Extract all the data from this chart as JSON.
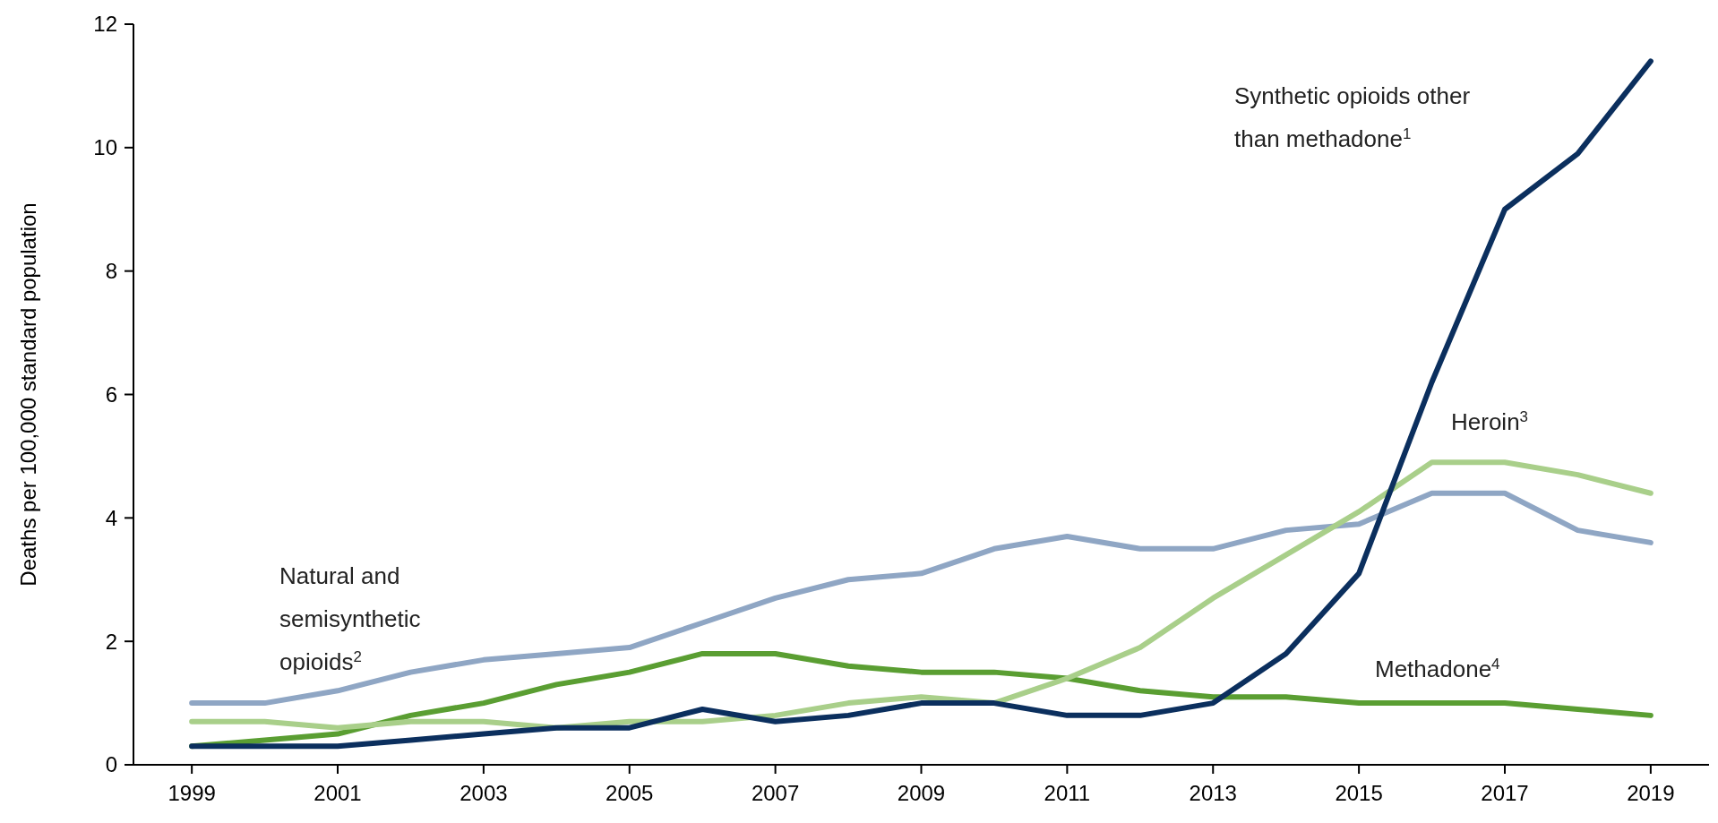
{
  "chart_data": {
    "type": "line",
    "ylabel": "Deaths per 100,000 standard population",
    "x": [
      1999,
      2000,
      2001,
      2002,
      2003,
      2004,
      2005,
      2006,
      2007,
      2008,
      2009,
      2010,
      2011,
      2012,
      2013,
      2014,
      2015,
      2016,
      2017,
      2018,
      2019
    ],
    "xlim": [
      1998.2,
      2019.8
    ],
    "xticks": [
      1999,
      2001,
      2003,
      2005,
      2007,
      2009,
      2011,
      2013,
      2015,
      2017,
      2019
    ],
    "ylim": [
      0,
      12
    ],
    "yticks": [
      0,
      2,
      4,
      6,
      8,
      10,
      12
    ],
    "grid": false,
    "legend": false,
    "marker": "none",
    "line_style": "solid",
    "series": [
      {
        "name": "Natural and semisynthetic opioids$^{2}$",
        "color": "#8fa6c4",
        "values": [
          1.0,
          1.0,
          1.2,
          1.5,
          1.7,
          1.8,
          1.9,
          2.3,
          2.7,
          3.0,
          3.1,
          3.5,
          3.7,
          3.5,
          3.5,
          3.8,
          3.9,
          4.4,
          4.4,
          3.8,
          3.6
        ]
      },
      {
        "name": "Methadone$^{4}$",
        "color": "#5a9e32",
        "values": [
          0.3,
          0.4,
          0.5,
          0.8,
          1.0,
          1.3,
          1.5,
          1.8,
          1.8,
          1.6,
          1.5,
          1.5,
          1.4,
          1.2,
          1.1,
          1.1,
          1.0,
          1.0,
          1.0,
          0.9,
          0.8
        ]
      },
      {
        "name": "Heroin$^{3}$",
        "color": "#a9cf8a",
        "values": [
          0.7,
          0.7,
          0.6,
          0.7,
          0.7,
          0.6,
          0.7,
          0.7,
          0.8,
          1.0,
          1.1,
          1.0,
          1.4,
          1.9,
          2.7,
          3.4,
          4.1,
          4.9,
          4.9,
          4.7,
          4.4
        ]
      },
      {
        "name": "Synthetic opioids other than methadone$^{1}$",
        "color": "#0b2f5e",
        "values": [
          0.3,
          0.3,
          0.3,
          0.4,
          0.5,
          0.6,
          0.6,
          0.9,
          0.7,
          0.8,
          1.0,
          1.0,
          0.8,
          0.8,
          1.0,
          1.8,
          3.1,
          6.2,
          9.0,
          9.9,
          11.4
        ]
      }
    ]
  }
}
